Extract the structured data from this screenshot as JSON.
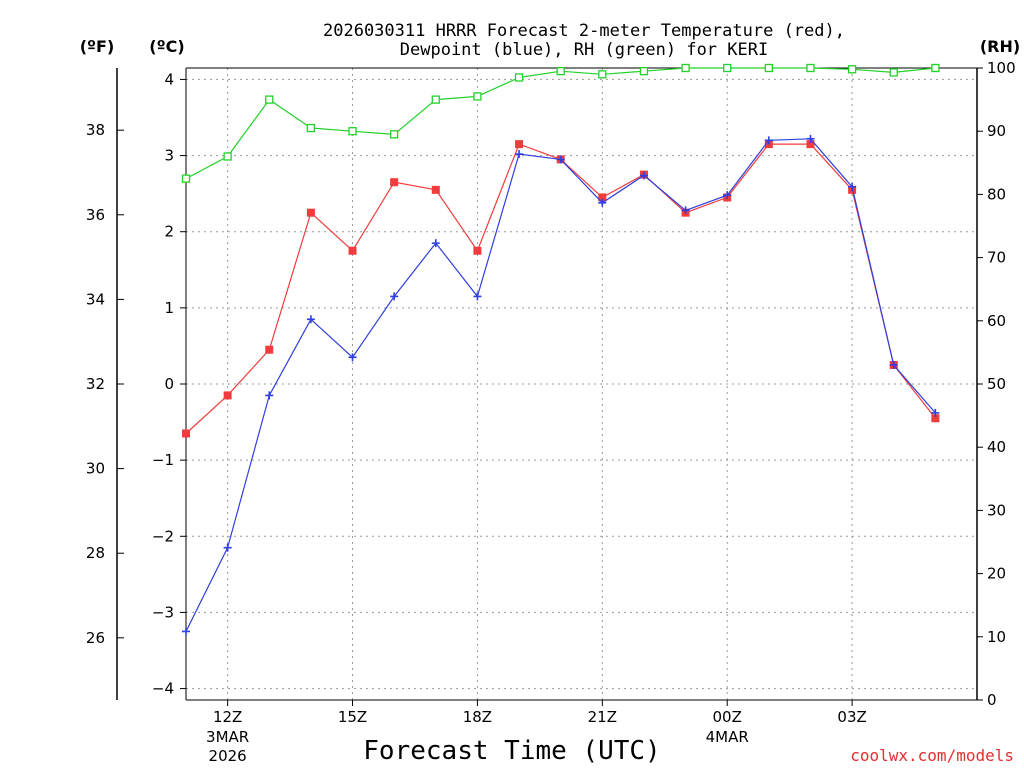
{
  "chart_data": {
    "type": "line",
    "title_lines": [
      "2026030311 HRRR Forecast 2-meter Temperature (red),",
      "Dewpoint (blue), RH (green) for KERI"
    ],
    "xlabel": "Forecast Time (UTC)",
    "credit": "coolwx.com/models",
    "unit_labels": {
      "fahrenheit": "(ºF)",
      "celsius": "(ºC)",
      "rh": "(RH)"
    },
    "x_range": [
      11,
      30
    ],
    "x_ticks": [
      {
        "x": 12,
        "label": "12Z",
        "sub": [
          "3MAR",
          "2026"
        ]
      },
      {
        "x": 15,
        "label": "15Z",
        "sub": []
      },
      {
        "x": 18,
        "label": "18Z",
        "sub": []
      },
      {
        "x": 21,
        "label": "21Z",
        "sub": []
      },
      {
        "x": 24,
        "label": "00Z",
        "sub": [
          "4MAR"
        ]
      },
      {
        "x": 27,
        "label": "03Z",
        "sub": []
      }
    ],
    "celsius_axis": {
      "range": [
        -4.15,
        4.15
      ],
      "ticks": [
        -4,
        -3,
        -2,
        -1,
        0,
        1,
        2,
        3,
        4
      ],
      "tick_labels": [
        "−4",
        "−3",
        "−2",
        "−1",
        "0",
        "1",
        "2",
        "3",
        "4"
      ]
    },
    "fahrenheit_axis": {
      "ticks": [
        26,
        28,
        30,
        32,
        34,
        36,
        38
      ],
      "tick_labels": [
        "26",
        "28",
        "30",
        "32",
        "34",
        "36",
        "38"
      ]
    },
    "rh_axis": {
      "range": [
        0,
        100
      ],
      "ticks": [
        0,
        10,
        20,
        30,
        40,
        50,
        60,
        70,
        80,
        90,
        100
      ],
      "tick_labels": [
        "0",
        "10",
        "20",
        "30",
        "40",
        "50",
        "60",
        "70",
        "80",
        "90",
        "100"
      ]
    },
    "x": [
      11,
      12,
      13,
      14,
      15,
      16,
      17,
      18,
      19,
      20,
      21,
      22,
      23,
      24,
      25,
      26,
      27,
      28,
      29
    ],
    "series": [
      {
        "name": "Temperature",
        "color": "#f03c3c",
        "marker": "square",
        "axis": "celsius",
        "values": [
          -0.65,
          -0.15,
          0.45,
          2.25,
          1.75,
          2.65,
          2.55,
          1.75,
          3.15,
          2.95,
          2.45,
          2.75,
          2.25,
          2.45,
          3.15,
          3.15,
          2.55,
          0.25,
          -0.45
        ]
      },
      {
        "name": "Dewpoint",
        "color": "#2f3fe0",
        "marker": "plus",
        "axis": "celsius",
        "values": [
          -3.25,
          -2.15,
          -0.15,
          0.85,
          0.35,
          1.15,
          1.85,
          1.15,
          3.02,
          2.95,
          2.38,
          2.74,
          2.28,
          2.48,
          3.2,
          3.22,
          2.59,
          0.25,
          -0.38
        ]
      },
      {
        "name": "RH",
        "color": "#22d22a",
        "marker": "open-square",
        "axis": "rh",
        "values": [
          82.5,
          86,
          95,
          90.5,
          90,
          89.5,
          95,
          95.5,
          98.5,
          99.5,
          99,
          99.5,
          100,
          100,
          100,
          100,
          99.8,
          99.3,
          100
        ]
      }
    ]
  }
}
